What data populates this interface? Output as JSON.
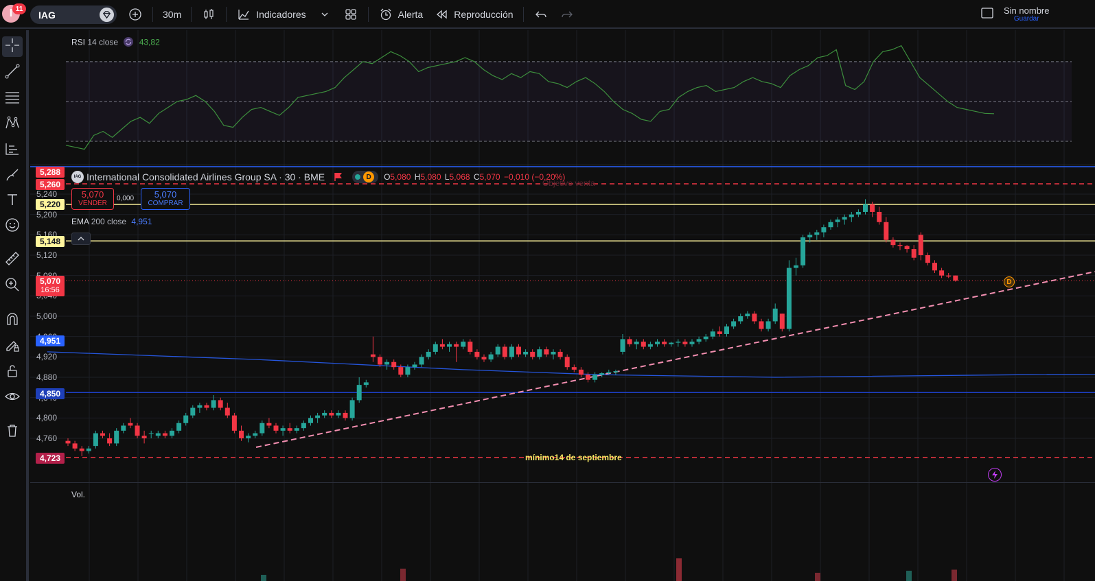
{
  "toolbar": {
    "avatar_letter": "I",
    "notification_count": "11",
    "symbol": "IAG",
    "interval": "30m",
    "indicators_label": "Indicadores",
    "alert_label": "Alerta",
    "replay_label": "Reproducción",
    "layout_name": "Sin nombre",
    "save_label": "Guardar"
  },
  "rsi": {
    "title": "RSI",
    "params": "14 close",
    "value": "43,82"
  },
  "main_legend": {
    "badge": "IAG",
    "title": "International Consolidated Airlines Group SA · 30 · BME",
    "d_badge": "D",
    "o_label": "O",
    "o_value": "5,080",
    "h_label": "H",
    "h_value": "5,080",
    "l_label": "L",
    "l_value": "5,068",
    "c_label": "C",
    "c_value": "5,070",
    "change": "−0,010 (−0,20%)"
  },
  "trade": {
    "sell_price": "5,070",
    "sell_label": "VENDER",
    "spread": "0,000",
    "buy_price": "5,070",
    "buy_label": "COMPRAR"
  },
  "ema": {
    "title": "EMA",
    "params": "200 close",
    "value": "4,951"
  },
  "annotations": {
    "objective": "Objetivo venta",
    "minimum": "mínimo14 de septiembre"
  },
  "volume_label": "Vol.",
  "price_axis": {
    "ticks": [
      "5,240",
      "5,200",
      "5,160",
      "5,120",
      "5,080",
      "5,040",
      "5,000",
      "4,960",
      "4,920",
      "4,880",
      "4,840",
      "4,800",
      "4,760"
    ],
    "tags": {
      "t5288": "5,288",
      "t5260": "5,260",
      "t5220": "5,220",
      "t5148": "5,148",
      "current_price": "5,070",
      "countdown": "16:56",
      "ema": "4,951",
      "t4850": "4,850",
      "t4723": "4,723"
    }
  },
  "chart_data": {
    "type": "candlestick",
    "title": "International Consolidated Airlines Group SA · 30 · BME",
    "ylim": [
      4.7,
      5.3
    ],
    "ohlc": [
      [
        4.755,
        4.76,
        4.745,
        4.75
      ],
      [
        4.75,
        4.755,
        4.735,
        4.74
      ],
      [
        4.74,
        4.745,
        4.725,
        4.735
      ],
      [
        4.735,
        4.745,
        4.73,
        4.74
      ],
      [
        4.745,
        4.775,
        4.74,
        4.77
      ],
      [
        4.77,
        4.775,
        4.76,
        4.765
      ],
      [
        4.76,
        4.77,
        4.745,
        4.75
      ],
      [
        4.75,
        4.78,
        4.745,
        4.775
      ],
      [
        4.775,
        4.79,
        4.77,
        4.785
      ],
      [
        4.79,
        4.8,
        4.78,
        4.785
      ],
      [
        4.785,
        4.79,
        4.76,
        4.765
      ],
      [
        4.765,
        4.775,
        4.75,
        4.76
      ],
      [
        4.77,
        4.775,
        4.76,
        4.77
      ],
      [
        4.765,
        4.775,
        4.76,
        4.77
      ],
      [
        4.77,
        4.775,
        4.76,
        4.765
      ],
      [
        4.765,
        4.78,
        4.76,
        4.775
      ],
      [
        4.775,
        4.795,
        4.77,
        4.79
      ],
      [
        4.79,
        4.81,
        4.785,
        4.805
      ],
      [
        4.805,
        4.825,
        4.8,
        4.82
      ],
      [
        4.82,
        4.83,
        4.81,
        4.825
      ],
      [
        4.825,
        4.83,
        4.815,
        4.82
      ],
      [
        4.82,
        4.845,
        4.815,
        4.835
      ],
      [
        4.835,
        4.84,
        4.815,
        4.82
      ],
      [
        4.82,
        4.83,
        4.8,
        4.805
      ],
      [
        4.805,
        4.81,
        4.77,
        4.775
      ],
      [
        4.775,
        4.785,
        4.755,
        4.76
      ],
      [
        4.76,
        4.77,
        4.752,
        4.765
      ],
      [
        4.765,
        4.775,
        4.76,
        4.77
      ],
      [
        4.77,
        4.795,
        4.765,
        4.79
      ],
      [
        4.79,
        4.8,
        4.78,
        4.785
      ],
      [
        4.785,
        4.79,
        4.77,
        4.775
      ],
      [
        4.775,
        4.785,
        4.765,
        4.78
      ],
      [
        4.78,
        4.79,
        4.77,
        4.775
      ],
      [
        4.775,
        4.785,
        4.77,
        4.78
      ],
      [
        4.78,
        4.795,
        4.775,
        4.79
      ],
      [
        4.79,
        4.805,
        4.785,
        4.8
      ],
      [
        4.8,
        4.81,
        4.79,
        4.805
      ],
      [
        4.805,
        4.815,
        4.8,
        4.81
      ],
      [
        4.81,
        4.815,
        4.8,
        4.805
      ],
      [
        4.805,
        4.815,
        4.8,
        4.81
      ],
      [
        4.81,
        4.815,
        4.795,
        4.8
      ],
      [
        4.8,
        4.84,
        4.795,
        4.835
      ],
      [
        4.835,
        4.88,
        4.83,
        4.865
      ],
      [
        4.865,
        4.875,
        4.86,
        4.87
      ],
      [
        4.925,
        4.96,
        4.91,
        4.92
      ],
      [
        4.92,
        4.925,
        4.9,
        4.905
      ],
      [
        4.905,
        4.915,
        4.895,
        4.91
      ],
      [
        4.91,
        4.915,
        4.895,
        4.9
      ],
      [
        4.9,
        4.905,
        4.88,
        4.885
      ],
      [
        4.885,
        4.905,
        4.88,
        4.9
      ],
      [
        4.9,
        4.91,
        4.895,
        4.905
      ],
      [
        4.905,
        4.925,
        4.9,
        4.92
      ],
      [
        4.92,
        4.935,
        4.915,
        4.93
      ],
      [
        4.93,
        4.95,
        4.925,
        4.945
      ],
      [
        4.945,
        4.955,
        4.935,
        4.94
      ],
      [
        4.94,
        4.95,
        4.93,
        4.945
      ],
      [
        4.945,
        4.95,
        4.91,
        4.94
      ],
      [
        4.94,
        4.955,
        4.935,
        4.95
      ],
      [
        4.95,
        4.955,
        4.925,
        4.93
      ],
      [
        4.93,
        4.935,
        4.915,
        4.92
      ],
      [
        4.92,
        4.925,
        4.91,
        4.915
      ],
      [
        4.915,
        4.93,
        4.91,
        4.925
      ],
      [
        4.925,
        4.945,
        4.92,
        4.94
      ],
      [
        4.94,
        4.945,
        4.915,
        4.92
      ],
      [
        4.92,
        4.945,
        4.915,
        4.94
      ],
      [
        4.94,
        4.945,
        4.92,
        4.925
      ],
      [
        4.925,
        4.935,
        4.92,
        4.93
      ],
      [
        4.93,
        4.935,
        4.915,
        4.92
      ],
      [
        4.92,
        4.94,
        4.915,
        4.935
      ],
      [
        4.935,
        4.94,
        4.92,
        4.925
      ],
      [
        4.925,
        4.935,
        4.915,
        4.93
      ],
      [
        4.93,
        4.935,
        4.915,
        4.92
      ],
      [
        4.92,
        4.925,
        4.895,
        4.9
      ],
      [
        4.9,
        4.905,
        4.89,
        4.895
      ],
      [
        4.895,
        4.9,
        4.88,
        4.885
      ],
      [
        4.885,
        4.89,
        4.87,
        4.875
      ],
      [
        4.875,
        4.89,
        4.87,
        4.885
      ],
      [
        4.885,
        4.89,
        4.88,
        4.888
      ],
      [
        4.888,
        4.895,
        4.885,
        4.89
      ],
      [
        4.89,
        4.895,
        4.885,
        4.892
      ],
      [
        4.93,
        4.965,
        4.925,
        4.955
      ],
      [
        4.955,
        4.96,
        4.94,
        4.945
      ],
      [
        4.945,
        4.955,
        4.935,
        4.95
      ],
      [
        4.95,
        4.955,
        4.935,
        4.94
      ],
      [
        4.94,
        4.95,
        4.935,
        4.945
      ],
      [
        4.945,
        4.955,
        4.94,
        4.95
      ],
      [
        4.95,
        4.955,
        4.94,
        4.945
      ],
      [
        4.945,
        4.95,
        4.94,
        4.948
      ],
      [
        4.948,
        4.955,
        4.94,
        4.95
      ],
      [
        4.95,
        4.955,
        4.94,
        4.945
      ],
      [
        4.945,
        4.955,
        4.94,
        4.95
      ],
      [
        4.95,
        4.96,
        4.945,
        4.955
      ],
      [
        4.955,
        4.965,
        4.95,
        4.96
      ],
      [
        4.96,
        4.975,
        4.955,
        4.97
      ],
      [
        4.97,
        4.98,
        4.96,
        4.965
      ],
      [
        4.965,
        4.985,
        4.96,
        4.98
      ],
      [
        4.98,
        4.995,
        4.975,
        4.99
      ],
      [
        4.99,
        5.005,
        4.985,
        5.0
      ],
      [
        5.0,
        5.01,
        4.995,
        5.005
      ],
      [
        5.005,
        5.01,
        4.985,
        4.99
      ],
      [
        4.99,
        4.995,
        4.97,
        4.975
      ],
      [
        4.975,
        4.995,
        4.97,
        4.99
      ],
      [
        4.99,
        5.025,
        4.985,
        5.015
      ],
      [
        5.005,
        5.005,
        4.97,
        4.975
      ],
      [
        4.975,
        5.11,
        4.97,
        5.095
      ],
      [
        5.095,
        5.115,
        5.08,
        5.1
      ],
      [
        5.1,
        5.16,
        5.095,
        5.155
      ],
      [
        5.155,
        5.165,
        5.145,
        5.16
      ],
      [
        5.16,
        5.17,
        5.15,
        5.165
      ],
      [
        5.165,
        5.18,
        5.155,
        5.175
      ],
      [
        5.175,
        5.19,
        5.17,
        5.185
      ],
      [
        5.185,
        5.195,
        5.175,
        5.19
      ],
      [
        5.19,
        5.2,
        5.18,
        5.195
      ],
      [
        5.195,
        5.205,
        5.185,
        5.2
      ],
      [
        5.2,
        5.21,
        5.195,
        5.205
      ],
      [
        5.205,
        5.23,
        5.2,
        5.22
      ],
      [
        5.22,
        5.225,
        5.195,
        5.205
      ],
      [
        5.205,
        5.215,
        5.18,
        5.185
      ],
      [
        5.185,
        5.195,
        5.145,
        5.15
      ],
      [
        5.15,
        5.155,
        5.135,
        5.14
      ],
      [
        5.14,
        5.145,
        5.13,
        5.138
      ],
      [
        5.138,
        5.14,
        5.125,
        5.132
      ],
      [
        5.132,
        5.14,
        5.11,
        5.115
      ],
      [
        5.16,
        5.165,
        5.11,
        5.12
      ],
      [
        5.12,
        5.125,
        5.1,
        5.105
      ],
      [
        5.105,
        5.11,
        5.085,
        5.09
      ],
      [
        5.09,
        5.095,
        5.075,
        5.08
      ],
      [
        5.08,
        5.085,
        5.075,
        5.078
      ],
      [
        5.08,
        5.08,
        5.068,
        5.07
      ]
    ],
    "ema_200": [
      [
        0,
        4.93
      ],
      [
        30,
        4.915
      ],
      [
        60,
        4.895
      ],
      [
        80,
        4.885
      ],
      [
        105,
        4.88
      ],
      [
        140,
        4.885
      ],
      [
        175,
        4.888
      ],
      [
        200,
        4.9
      ],
      [
        230,
        4.91
      ],
      [
        258,
        4.935
      ],
      [
        283,
        4.95
      ]
    ],
    "rsi_series": [
      28,
      27,
      26,
      33,
      35,
      32,
      36,
      40,
      42,
      39,
      44,
      47,
      50,
      51,
      53,
      50,
      45,
      38,
      37,
      42,
      46,
      47,
      45,
      43,
      47,
      52,
      53,
      54,
      55,
      57,
      62,
      66,
      70,
      69,
      72,
      75,
      73,
      70,
      65,
      67,
      68,
      69,
      70,
      72,
      70,
      66,
      63,
      61,
      64,
      62,
      65,
      64,
      60,
      59,
      57,
      60,
      62,
      59,
      55,
      50,
      46,
      44,
      41,
      40,
      45,
      46,
      52,
      55,
      57,
      58,
      55,
      56,
      57,
      60,
      62,
      60,
      59,
      57,
      63,
      66,
      68,
      72,
      73,
      76,
      58,
      56,
      60,
      70,
      75,
      76,
      78,
      70,
      62,
      58,
      54,
      50,
      47,
      46,
      45,
      44,
      43.82
    ],
    "rsi_ylim": [
      20,
      82
    ],
    "horizontal_levels": [
      5.288,
      5.26,
      5.22,
      5.148,
      4.85,
      4.723
    ],
    "volume": [
      [
        29,
        6
      ],
      [
        54,
        12
      ],
      [
        99,
        8
      ],
      [
        115,
        22
      ],
      [
        130,
        10
      ],
      [
        139,
        11
      ],
      [
        149,
        8
      ],
      [
        1370,
        10
      ],
      [
        1385,
        6
      ]
    ]
  }
}
